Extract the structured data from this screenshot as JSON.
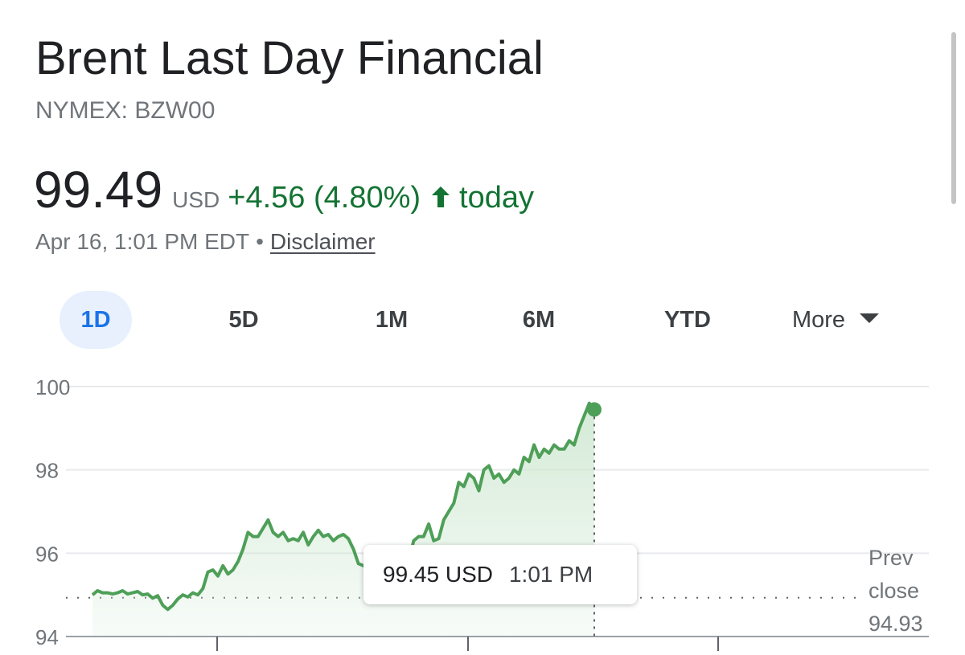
{
  "header": {
    "title": "Brent Last Day Financial",
    "exchange": "NYMEX: BZW00"
  },
  "quote": {
    "price": "99.49",
    "currency": "USD",
    "change": "+4.56 (4.80%)",
    "period": "today",
    "direction": "up",
    "timestamp": "Apr 16, 1:01 PM EDT",
    "separator": "•",
    "disclaimer": "Disclaimer"
  },
  "colors": {
    "positive": "#137333",
    "line": "#4e9f58",
    "fill_top": "#cfe8d2",
    "active_tab_bg": "#e8f0fe",
    "active_tab_text": "#1a73e8"
  },
  "range_tabs": [
    {
      "label": "1D",
      "active": true
    },
    {
      "label": "5D",
      "active": false
    },
    {
      "label": "1M",
      "active": false
    },
    {
      "label": "6M",
      "active": false
    },
    {
      "label": "YTD",
      "active": false
    },
    {
      "label": "More",
      "active": false,
      "dropdown": true
    }
  ],
  "tooltip": {
    "price": "99.45 USD",
    "time": "1:01 PM"
  },
  "prev_close": {
    "line1": "Prev",
    "line2": "close",
    "value": "94.93"
  },
  "chart_data": {
    "type": "area",
    "title": "",
    "xlabel": "",
    "ylabel": "",
    "ylim": [
      94,
      100
    ],
    "yticks": [
      94,
      96,
      98,
      100
    ],
    "grid": true,
    "prev_close": 94.93,
    "current_point": {
      "x": 0.6,
      "y": 99.45
    },
    "session_fraction_elapsed": 0.6,
    "x": [
      0,
      0.006,
      0.012,
      0.018,
      0.024,
      0.03,
      0.036,
      0.042,
      0.048,
      0.054,
      0.06,
      0.066,
      0.072,
      0.078,
      0.084,
      0.09,
      0.096,
      0.102,
      0.108,
      0.114,
      0.12,
      0.126,
      0.132,
      0.138,
      0.144,
      0.15,
      0.156,
      0.162,
      0.168,
      0.174,
      0.18,
      0.186,
      0.192,
      0.198,
      0.204,
      0.21,
      0.216,
      0.222,
      0.228,
      0.234,
      0.24,
      0.246,
      0.252,
      0.258,
      0.264,
      0.27,
      0.276,
      0.282,
      0.288,
      0.294,
      0.3,
      0.306,
      0.312,
      0.318,
      0.324,
      0.33,
      0.336,
      0.342,
      0.348,
      0.354,
      0.36,
      0.366,
      0.372,
      0.378,
      0.384,
      0.39,
      0.396,
      0.402,
      0.408,
      0.414,
      0.42,
      0.426,
      0.432,
      0.438,
      0.444,
      0.45,
      0.456,
      0.462,
      0.468,
      0.474,
      0.48,
      0.486,
      0.492,
      0.498,
      0.504,
      0.51,
      0.516,
      0.522,
      0.528,
      0.534,
      0.54,
      0.546,
      0.552,
      0.558,
      0.564,
      0.57,
      0.576,
      0.582,
      0.588,
      0.594,
      0.6
    ],
    "values": [
      95.0,
      95.1,
      95.05,
      95.05,
      95.02,
      95.05,
      95.1,
      95.02,
      95.05,
      95.08,
      95.0,
      95.02,
      94.92,
      94.98,
      94.75,
      94.65,
      94.75,
      94.9,
      95.0,
      94.95,
      95.05,
      95.0,
      95.15,
      95.55,
      95.6,
      95.45,
      95.7,
      95.5,
      95.6,
      95.8,
      96.1,
      96.5,
      96.4,
      96.4,
      96.6,
      96.8,
      96.5,
      96.4,
      96.5,
      96.3,
      96.35,
      96.3,
      96.5,
      96.2,
      96.4,
      96.55,
      96.4,
      96.45,
      96.3,
      96.4,
      96.45,
      96.35,
      96.1,
      95.75,
      95.7,
      95.6,
      95.8,
      95.65,
      95.7,
      95.55,
      95.6,
      95.7,
      95.55,
      95.8,
      96.3,
      96.4,
      96.4,
      96.7,
      96.3,
      96.35,
      96.8,
      97.0,
      97.2,
      97.7,
      97.6,
      97.9,
      97.8,
      97.5,
      98.0,
      98.1,
      97.8,
      97.9,
      97.7,
      97.8,
      98.0,
      97.9,
      98.3,
      98.2,
      98.6,
      98.3,
      98.5,
      98.4,
      98.6,
      98.5,
      98.5,
      98.7,
      98.6,
      99.0,
      99.3,
      99.6,
      99.45
    ]
  }
}
